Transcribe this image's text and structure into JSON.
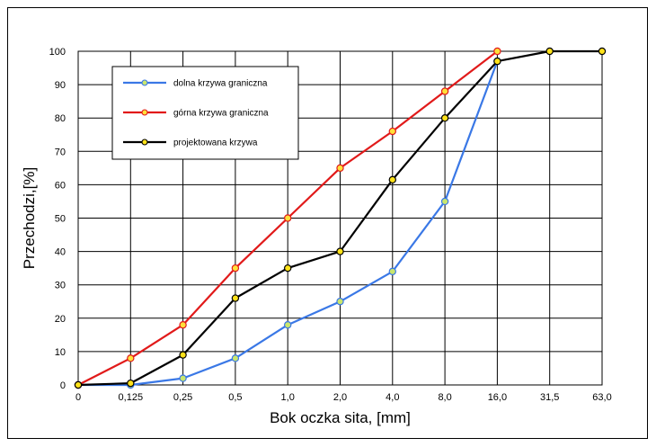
{
  "chart_data": {
    "type": "line",
    "title": "",
    "xlabel": "Bok oczka sita, [mm]",
    "ylabel": "Przechodzi,[%]",
    "categories": [
      "0",
      "0,125",
      "0,25",
      "0,5",
      "1,0",
      "2,0",
      "4,0",
      "8,0",
      "16,0",
      "31,5",
      "63,0"
    ],
    "y_ticks": [
      "0",
      "10",
      "20",
      "30",
      "40",
      "50",
      "60",
      "70",
      "80",
      "90",
      "100"
    ],
    "ylim": [
      0,
      100
    ],
    "grid": true,
    "legend_position": "top-left inside plot",
    "series": [
      {
        "name": "dolna krzywa graniczna",
        "color": "#3a78e6",
        "marker_fill": "#c9e66e",
        "values": [
          0,
          0,
          2,
          8,
          18,
          25,
          34,
          55,
          97,
          null,
          null
        ]
      },
      {
        "name": "górna krzywa graniczna",
        "color": "#e11a1a",
        "marker_fill": "#ffe13a",
        "values": [
          0,
          8,
          18,
          35,
          50,
          65,
          76,
          88,
          100,
          null,
          null
        ]
      },
      {
        "name": "projektowana krzywa",
        "color": "#000000",
        "marker_fill": "#ffe21a",
        "values": [
          0,
          0.5,
          9,
          26,
          35,
          40,
          61.5,
          80,
          97,
          100,
          100
        ]
      }
    ]
  }
}
